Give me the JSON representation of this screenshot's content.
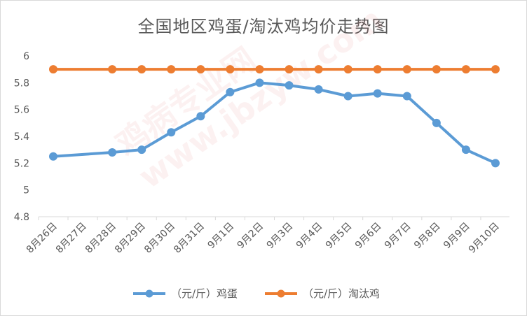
{
  "chart_data": {
    "type": "line",
    "title": "全国地区鸡蛋/淘汰鸡均价走势图",
    "categories": [
      "8月26日",
      "8月27日",
      "8月28日",
      "8月29日",
      "8月30日",
      "8月31日",
      "9月1日",
      "9月2日",
      "9月3日",
      "9月4日",
      "9月5日",
      "9月6日",
      "9月7日",
      "9月8日",
      "9月9日",
      "9月10日"
    ],
    "x_positions": [
      0,
      2,
      3,
      4,
      5,
      6,
      7,
      8,
      9,
      10,
      11,
      12,
      13,
      14,
      15
    ],
    "series": [
      {
        "name": "（元/斤）鸡蛋",
        "color": "#5b9bd5",
        "points": [
          {
            "i": 0,
            "v": 5.25
          },
          {
            "i": 2,
            "v": 5.28
          },
          {
            "i": 3,
            "v": 5.3
          },
          {
            "i": 4,
            "v": 5.43
          },
          {
            "i": 5,
            "v": 5.55
          },
          {
            "i": 6,
            "v": 5.73
          },
          {
            "i": 7,
            "v": 5.8
          },
          {
            "i": 8,
            "v": 5.78
          },
          {
            "i": 9,
            "v": 5.75
          },
          {
            "i": 10,
            "v": 5.7
          },
          {
            "i": 11,
            "v": 5.72
          },
          {
            "i": 12,
            "v": 5.7
          },
          {
            "i": 13,
            "v": 5.5
          },
          {
            "i": 14,
            "v": 5.3
          },
          {
            "i": 15,
            "v": 5.2
          }
        ]
      },
      {
        "name": "（元/斤）淘汰鸡",
        "color": "#ed7d31",
        "points": [
          {
            "i": 0,
            "v": 5.9
          },
          {
            "i": 2,
            "v": 5.9
          },
          {
            "i": 3,
            "v": 5.9
          },
          {
            "i": 4,
            "v": 5.9
          },
          {
            "i": 5,
            "v": 5.9
          },
          {
            "i": 6,
            "v": 5.9
          },
          {
            "i": 7,
            "v": 5.9
          },
          {
            "i": 8,
            "v": 5.9
          },
          {
            "i": 9,
            "v": 5.9
          },
          {
            "i": 10,
            "v": 5.9
          },
          {
            "i": 11,
            "v": 5.9
          },
          {
            "i": 12,
            "v": 5.9
          },
          {
            "i": 13,
            "v": 5.9
          },
          {
            "i": 14,
            "v": 5.9
          },
          {
            "i": 15,
            "v": 5.9
          }
        ]
      }
    ],
    "yticks": [
      "4.8",
      "5",
      "5.2",
      "5.4",
      "5.6",
      "5.8",
      "6"
    ],
    "ylim": [
      4.8,
      6.0
    ],
    "grid": false,
    "legend": "bottom"
  },
  "watermark": "鸡病专业网 www.jbzyw.com"
}
